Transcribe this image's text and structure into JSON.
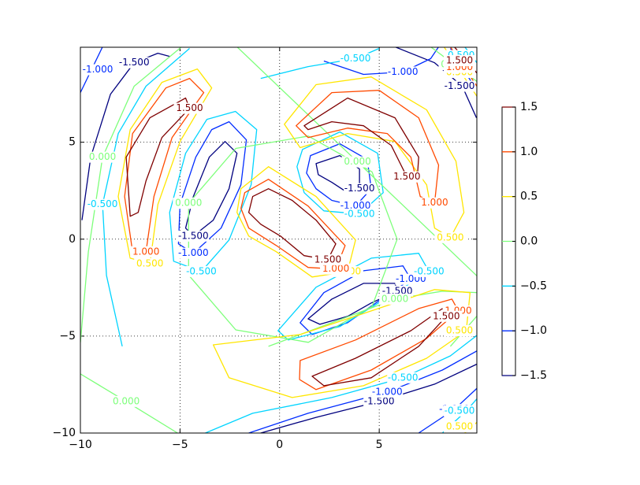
{
  "chart_data": {
    "type": "contour",
    "xlim": [
      -10,
      9.9
    ],
    "ylim": [
      -10,
      9.9
    ],
    "xticks": [
      {
        "value": -10,
        "label": "−10"
      },
      {
        "value": -5,
        "label": "−5"
      },
      0,
      5
    ],
    "yticks": [
      {
        "value": -10,
        "label": "−10"
      },
      {
        "value": -5,
        "label": "−5"
      },
      0,
      5
    ],
    "grid": true,
    "levels": [
      -1.5,
      -1.0,
      -0.5,
      0,
      0.5,
      1.0,
      1.5
    ],
    "value_labels": [
      "-1.500",
      "-1.000",
      "-0.500",
      "0.000",
      "0.500",
      "1.000",
      "1.500"
    ],
    "colors": [
      "#00007f",
      "#002cff",
      "#00d4ff",
      "#7dff7a",
      "#ffe600",
      "#ff4a00",
      "#7f0000"
    ],
    "colorbar": {
      "ylim": [
        -1.5,
        1.5
      ],
      "yticks": [
        {
          "value": -1.5,
          "label": "−1.5"
        },
        {
          "value": -1.0,
          "label": "−1.0"
        },
        {
          "value": -0.5,
          "label": "−0.5"
        },
        {
          "value": 0,
          "label": "0.0"
        },
        {
          "value": 0.5,
          "label": "0.5"
        },
        {
          "value": 1.0,
          "label": "1.0"
        },
        1.5
      ]
    },
    "lines": [
      [
        {
          "x": [
            -9.92,
            -9.48,
            -8.49,
            -7.3,
            -6.11,
            -5.52
          ],
          "y": [
            0.98,
            4.23,
            7.48,
            9.1,
            9.59,
            9.43
          ],
          "closed": false
        },
        {
          "x": [
            -2.74,
            -2.14,
            -2.54,
            -3.33,
            -4.33,
            -4.72,
            -4.33,
            -3.53
          ],
          "y": [
            5.04,
            4.43,
            2.6,
            0.98,
            0.16,
            0.57,
            2.2,
            4.23
          ],
          "closed": true
        },
        {
          "x": [
            1.83,
            3.02,
            4.01,
            4.01,
            3.41,
            2.62,
            1.94
          ],
          "y": [
            3.9,
            4.31,
            3.62,
            2.6,
            2.4,
            2.93,
            3.33
          ],
          "closed": true
        },
        {
          "x": [
            5.79,
            7.78,
            9.17,
            9.88
          ],
          "y": [
            9.92,
            9.1,
            7.89,
            6.26
          ],
          "closed": false
        },
        {
          "x": [
            1.43,
            2.62,
            4.21,
            5.79,
            5.91,
            4.6,
            3.41,
            2.02
          ],
          "y": [
            -4.11,
            -3.09,
            -2.28,
            -2.28,
            -2.68,
            -3.29,
            -3.98,
            -4.39
          ],
          "closed": true
        },
        {
          "x": [
            -0.95,
            1.83,
            5.0,
            7.78,
            9.96
          ],
          "y": [
            -10.0,
            -9.19,
            -8.37,
            -7.48,
            -6.42
          ],
          "closed": false
        }
      ],
      [
        {
          "x": [
            -8.89,
            -10.0
          ],
          "y": [
            9.92,
            7.56
          ],
          "closed": false
        },
        {
          "x": [
            -2.54,
            -1.67,
            -1.94,
            -2.94,
            -4.33,
            -5.08,
            -5.0,
            -4.21,
            -3.41
          ],
          "y": [
            6.06,
            5.12,
            2.8,
            0.57,
            -0.73,
            -0.24,
            1.79,
            4.23,
            5.65
          ],
          "closed": true
        },
        {
          "x": [
            1.55,
            3.02,
            4.4,
            4.6,
            3.81,
            2.62,
            1.83,
            1.35
          ],
          "y": [
            4.31,
            4.92,
            4.11,
            2.6,
            1.71,
            2.0,
            2.6,
            3.41
          ],
          "closed": true
        },
        {
          "x": [
            2.22,
            4.21,
            6.19,
            7.58,
            7.98
          ],
          "y": [
            9.19,
            8.5,
            8.62,
            9.31,
            9.92
          ],
          "closed": false
        },
        {
          "x": [
            8.57,
            9.76
          ],
          "y": [
            9.84,
            7.89
          ],
          "closed": false
        },
        {
          "x": [
            1.03,
            2.22,
            4.21,
            6.19,
            6.59,
            5.0,
            3.41,
            1.63
          ],
          "y": [
            -4.31,
            -2.76,
            -1.63,
            -1.38,
            -2.07,
            -3.17,
            -4.31,
            -4.92
          ],
          "closed": true
        },
        {
          "x": [
            -1.55,
            1.43,
            5.4,
            8.17,
            9.96
          ],
          "y": [
            -10.0,
            -8.98,
            -7.89,
            -6.75,
            -5.73
          ],
          "closed": false
        },
        {
          "x": [
            6.98,
            8.77,
            9.96
          ],
          "y": [
            -10.0,
            -8.78,
            -7.64
          ],
          "closed": false
        }
      ],
      [
        {
          "x": [
            -4.52,
            -6.71,
            -8.1,
            -8.89,
            -8.69,
            -7.9
          ],
          "y": [
            9.84,
            7.89,
            5.45,
            1.79,
            -1.87,
            -5.53
          ],
          "closed": false
        },
        {
          "x": [
            -2.22,
            -1.15,
            -1.43,
            -2.54,
            -3.93,
            -5.32,
            -5.52,
            -4.72,
            -3.65
          ],
          "y": [
            6.59,
            5.65,
            2.8,
            -0.04,
            -1.67,
            -1.14,
            1.38,
            4.43,
            6.18
          ],
          "closed": true
        },
        {
          "x": [
            1.15,
            3.02,
            4.92,
            5.2,
            4.01,
            2.22,
            1.23,
            0.87
          ],
          "y": [
            4.63,
            5.53,
            4.43,
            2.4,
            1.3,
            1.46,
            2.4,
            3.74
          ],
          "closed": true
        },
        {
          "x": [
            -0.95,
            1.43,
            3.81,
            5.0
          ],
          "y": [
            8.29,
            8.9,
            9.31,
            9.84
          ],
          "closed": false
        },
        {
          "x": [
            9.29,
            9.96
          ],
          "y": [
            9.92,
            9.02
          ],
          "closed": false
        },
        {
          "x": [
            -0.08,
            1.83,
            4.6,
            6.98,
            7.5,
            5.6,
            3.02,
            0.44
          ],
          "y": [
            -4.72,
            -2.48,
            -0.98,
            -0.73,
            -1.67,
            -2.89,
            -4.51,
            -5.2
          ],
          "closed": true
        },
        {
          "x": [
            -3.73,
            -1.35,
            2.62,
            6.19,
            8.57,
            9.96
          ],
          "y": [
            -10.0,
            -8.98,
            -8.17,
            -7.15,
            -6.02,
            -4.92
          ],
          "closed": false
        },
        {
          "x": [
            8.17,
            9.37,
            9.96
          ],
          "y": [
            -10.0,
            -8.86,
            -8.17
          ],
          "closed": false
        }
      ],
      [
        {
          "x": [
            -2.14,
            9.96
          ],
          "y": [
            9.92,
            -1.95
          ],
          "closed": false
        },
        {
          "x": [
            5.9,
            4.64,
            1.44,
            -2.2,
            -4.57,
            -4.57,
            -2.2,
            1.44,
            4.64
          ],
          "y": [
            0,
            3.47,
            5.32,
            4.68,
            1.85,
            -1.85,
            -4.68,
            -5.32,
            -3.47
          ],
          "closed": true
        },
        {
          "x": [
            -4.92,
            -7.3,
            -8.89,
            -9.6,
            -10.0
          ],
          "y": [
            9.92,
            7.89,
            4.23,
            -0.65,
            -5.33
          ],
          "closed": false
        },
        {
          "x": [
            -10.0,
            -7.7,
            -5.12
          ],
          "y": [
            -6.95,
            -8.37,
            -10.0
          ],
          "closed": false
        },
        {
          "x": [
            7.58,
            9.96
          ],
          "y": [
            9.92,
            8.09
          ],
          "closed": false
        },
        {
          "x": [
            -0.56,
            2.62,
            5.79,
            8.17,
            9.96
          ],
          "y": [
            -5.53,
            -4.31,
            -3.09,
            -2.68,
            -2.76
          ],
          "closed": false
        },
        {
          "x": [
            8.57,
            9.96
          ],
          "y": [
            -5.53,
            -3.9
          ],
          "closed": false
        }
      ],
      [
        {
          "x": [
            -4.13,
            -3.41,
            -5.0,
            -6.11,
            -6.51,
            -7.5,
            -8.1,
            -7.5,
            -5.91
          ],
          "y": [
            8.78,
            7.8,
            5.04,
            1.79,
            -1.26,
            -0.98,
            2.2,
            5.65,
            8.09
          ],
          "closed": true
        },
        {
          "x": [
            -1.94,
            -0.56,
            1.83,
            3.81,
            3.41,
            1.63,
            -0.16,
            -1.55,
            -2.14
          ],
          "y": [
            2.6,
            3.74,
            2.2,
            -0.04,
            -1.67,
            -1.95,
            -0.65,
            0.16,
            1.38
          ],
          "closed": true
        },
        {
          "x": [
            0.24,
            1.83,
            4.6,
            7.38,
            8.85,
            9.25,
            8.57,
            7.78,
            7.38,
            5.79,
            3.41,
            1.03
          ],
          "y": [
            5.93,
            7.97,
            8.37,
            6.67,
            4.02,
            1.38,
            0.08,
            0.57,
            2.8,
            5.04,
            5.45,
            4.72
          ],
          "closed": true
        },
        {
          "x": [
            -3.33,
            1.03,
            4.6,
            7.78,
            9.56,
            9.37,
            7.38,
            4.21,
            0.63,
            -2.54
          ],
          "y": [
            -5.45,
            -4.92,
            -3.7,
            -2.6,
            -2.76,
            -4.72,
            -6.14,
            -7.56,
            -8.17,
            -7.15
          ],
          "closed": true
        },
        {
          "x": [
            8.25,
            9.96
          ],
          "y": [
            9.92,
            7.28
          ],
          "closed": false
        },
        {
          "x": [
            9.29,
            9.96
          ],
          "y": [
            -10.0,
            -9.39
          ],
          "closed": false
        }
      ],
      [
        {
          "x": [
            -4.52,
            -3.81,
            -5.4,
            -6.31,
            -6.71,
            -7.38,
            -7.78,
            -7.38,
            -5.71
          ],
          "y": [
            8.29,
            7.56,
            5.24,
            2.2,
            -0.65,
            -0.65,
            2.2,
            5.45,
            7.8
          ],
          "closed": true
        },
        {
          "x": [
            -1.75,
            -0.56,
            1.43,
            3.29,
            2.82,
            1.43,
            -0.16,
            -1.55,
            -1.94
          ],
          "y": [
            2.4,
            3.09,
            1.71,
            -0.33,
            -1.54,
            -1.46,
            -0.33,
            0.57,
            1.59
          ],
          "closed": true
        },
        {
          "x": [
            0.83,
            2.62,
            5.0,
            6.98,
            7.98,
            7.78,
            7.06,
            6.59,
            5.4,
            3.41,
            1.43
          ],
          "y": [
            5.85,
            7.56,
            7.68,
            6.26,
            3.82,
            1.87,
            2.2,
            4.23,
            5.45,
            5.73,
            5.24
          ],
          "closed": true
        },
        {
          "x": [
            1.03,
            3.81,
            6.98,
            8.65,
            8.97,
            7.38,
            4.6,
            1.83,
            1.0
          ],
          "y": [
            -6.26,
            -5.2,
            -3.58,
            -3.09,
            -3.7,
            -5.12,
            -6.75,
            -7.76,
            -7.24
          ],
          "closed": true
        },
        {
          "x": [
            8.57,
            9.96
          ],
          "y": [
            9.92,
            7.8
          ],
          "closed": false
        }
      ],
      [
        {
          "x": [
            -1.35,
            -0.56,
            0.63,
            1.83,
            2.82,
            2.42,
            1.23,
            0.04,
            -0.95,
            -1.55
          ],
          "y": [
            2.2,
            2.6,
            2.0,
            0.98,
            -0.24,
            -1.06,
            -0.85,
            0.16,
            0.77,
            1.38
          ],
          "closed": true
        },
        {
          "x": [
            1.23,
            3.41,
            5.79,
            6.98,
            6.9,
            6.39,
            5.6,
            4.21,
            2.62,
            1.43
          ],
          "y": [
            5.85,
            7.28,
            6.26,
            4.23,
            3.0,
            3.21,
            4.84,
            5.85,
            6.06,
            5.65
          ],
          "closed": true
        },
        {
          "x": [
            -7.5,
            -7.7,
            -6.51,
            -4.72,
            -4.52,
            -5.91,
            -6.71,
            -7.1
          ],
          "y": [
            1.18,
            4.23,
            6.26,
            7.28,
            6.75,
            5.24,
            3.0,
            1.38
          ],
          "closed": true
        },
        {
          "x": [
            1.63,
            3.81,
            6.59,
            8.17,
            8.37,
            6.98,
            4.6,
            2.22
          ],
          "y": [
            -7.07,
            -6.14,
            -4.72,
            -3.58,
            -3.98,
            -5.53,
            -7.15,
            -7.56
          ],
          "closed": true
        },
        {
          "x": [
            8.77,
            9.96
          ],
          "y": [
            9.92,
            8.5
          ],
          "closed": false
        }
      ]
    ]
  }
}
